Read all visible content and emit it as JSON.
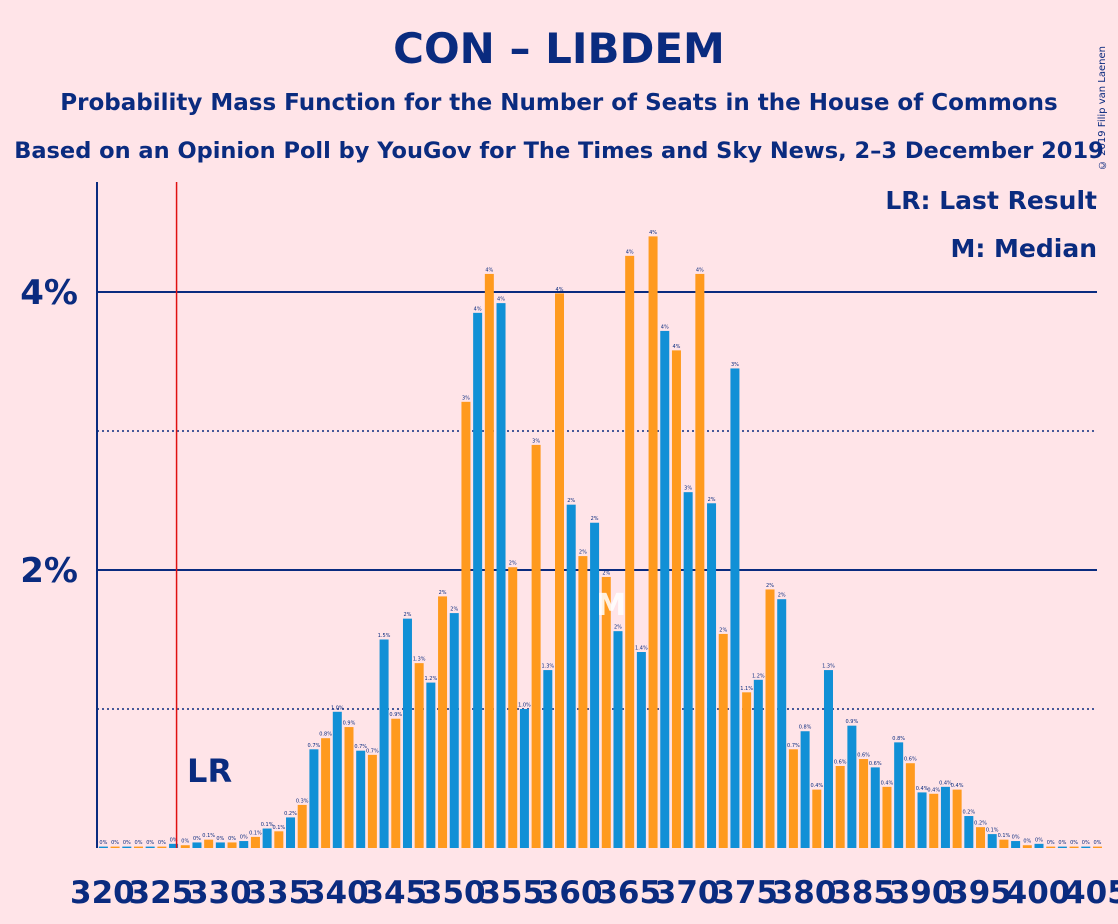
{
  "header": {
    "title": "CON – LIBDEM",
    "subtitle": "Probability Mass Function for the Number of Seats in the House of Commons",
    "subtitle2": "Based on an Opinion Poll by YouGov for The Times and Sky News, 2–3 December 2019",
    "copyright": "© 2019 Filip van Laenen"
  },
  "legend": {
    "last_result": "LR: Last Result",
    "median": "M: Median",
    "lr_marker": "LR",
    "median_marker": "M",
    "placement": "top-right"
  },
  "colors": {
    "background": "#FFE4E8",
    "text": "#0A2B7F",
    "bar_even": "#1190D6",
    "bar_odd": "#FF9A1E",
    "last_result_line": "#E01010"
  },
  "chart_data": {
    "type": "bar",
    "title": "CON – LIBDEM",
    "xlabel": "",
    "ylabel": "",
    "x_start": 320,
    "x_end": 405,
    "x_tick_labels": [
      "320",
      "325",
      "330",
      "335",
      "340",
      "345",
      "350",
      "355",
      "360",
      "365",
      "370",
      "375",
      "380",
      "385",
      "390",
      "395",
      "400",
      "405"
    ],
    "y_tick_labels": [
      {
        "value": 2,
        "label": "2%"
      },
      {
        "value": 4,
        "label": "4%"
      }
    ],
    "ylim": [
      0,
      4.7
    ],
    "grid": {
      "solid": [
        2,
        4
      ],
      "dotted": [
        1,
        3
      ]
    },
    "last_result": 326,
    "median": 363,
    "values": [
      0.01,
      0.01,
      0.01,
      0.01,
      0.01,
      0.01,
      0.03,
      0.02,
      0.04,
      0.06,
      0.04,
      0.04,
      0.05,
      0.08,
      0.14,
      0.12,
      0.22,
      0.31,
      0.71,
      0.79,
      0.98,
      0.87,
      0.7,
      0.67,
      1.5,
      0.93,
      1.65,
      1.33,
      1.19,
      1.81,
      1.69,
      3.21,
      3.85,
      4.13,
      3.92,
      2.02,
      1.0,
      2.9,
      1.28,
      3.99,
      2.47,
      2.1,
      2.34,
      1.95,
      1.56,
      4.26,
      1.41,
      4.4,
      3.72,
      3.58,
      2.56,
      4.13,
      2.48,
      1.54,
      3.45,
      1.12,
      1.21,
      1.86,
      1.79,
      0.71,
      0.84,
      0.42,
      1.28,
      0.59,
      0.88,
      0.64,
      0.58,
      0.44,
      0.76,
      0.61,
      0.4,
      0.39,
      0.44,
      0.42,
      0.23,
      0.15,
      0.1,
      0.06,
      0.05,
      0.02,
      0.03,
      0.01,
      0.01,
      0.01,
      0.01,
      0.01
    ],
    "labels": [
      "0%",
      "0%",
      "0%",
      "0%",
      "0%",
      "0%",
      "0%",
      "0%",
      "0%",
      "0.1%",
      "0%",
      "0%",
      "0%",
      "0.1%",
      "0.1%",
      "0.1%",
      "0.2%",
      "0.3%",
      "0.7%",
      "0.8%",
      "1.0%",
      "0.9%",
      "0.7%",
      "0.7%",
      "1.5%",
      "0.9%",
      "2%",
      "1.3%",
      "1.2%",
      "2%",
      "2%",
      "3%",
      "4%",
      "4%",
      "4%",
      "2%",
      "1.0%",
      "3%",
      "1.3%",
      "4%",
      "2%",
      "2%",
      "2%",
      "2%",
      "2%",
      "4%",
      "1.4%",
      "4%",
      "4%",
      "4%",
      "3%",
      "4%",
      "2%",
      "2%",
      "3%",
      "1.1%",
      "1.2%",
      "2%",
      "2%",
      "0.7%",
      "0.8%",
      "0.4%",
      "1.3%",
      "0.6%",
      "0.9%",
      "0.6%",
      "0.6%",
      "0.4%",
      "0.8%",
      "0.6%",
      "0.4%",
      "0.4%",
      "0.4%",
      "0.4%",
      "0.2%",
      "0.2%",
      "0.1%",
      "0.1%",
      "0%",
      "0%",
      "0%",
      "0%",
      "0%",
      "0%",
      "0%",
      "0%"
    ]
  }
}
